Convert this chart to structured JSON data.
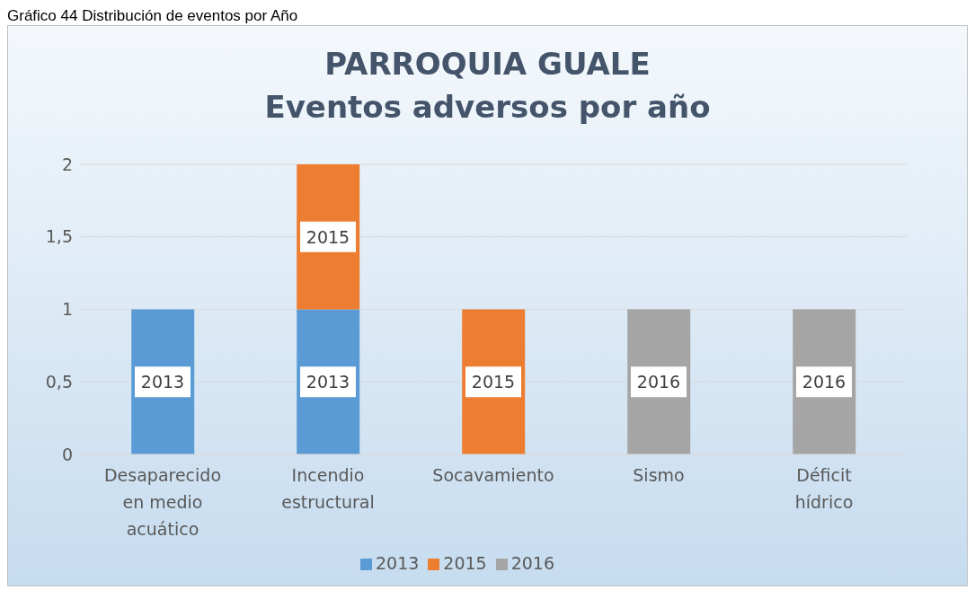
{
  "chart_data": {
    "type": "bar",
    "title": "PARROQUIA GUALE\nEventos adversos por año",
    "annotations": [
      "Gráfico 44 Distribución de eventos por Año",
      "2013",
      "2013",
      "2015",
      "2015",
      "2016",
      "2016"
    ],
    "categories": [
      "Desaparecido en medio acuático",
      "Incendio estructural",
      "Socavamiento",
      "Sismo",
      "Déficit hídrico"
    ],
    "series": [
      {
        "name": "2013",
        "color": "#5b9bd5",
        "values": [
          1,
          1,
          null,
          null,
          null
        ]
      },
      {
        "name": "2015",
        "color": "#ed7d31",
        "values": [
          null,
          1,
          1,
          null,
          null
        ]
      },
      {
        "name": "2016",
        "color": "#a5a5a5",
        "values": [
          null,
          null,
          null,
          1,
          1
        ]
      }
    ],
    "stacked": true,
    "ylim": [
      0,
      2
    ],
    "yticks": [
      0,
      {
        "value": 0.5,
        "label": "0,5"
      },
      1,
      {
        "value": 1.5,
        "label": "1,5"
      },
      2
    ],
    "grid": true,
    "legend": "bottom"
  }
}
